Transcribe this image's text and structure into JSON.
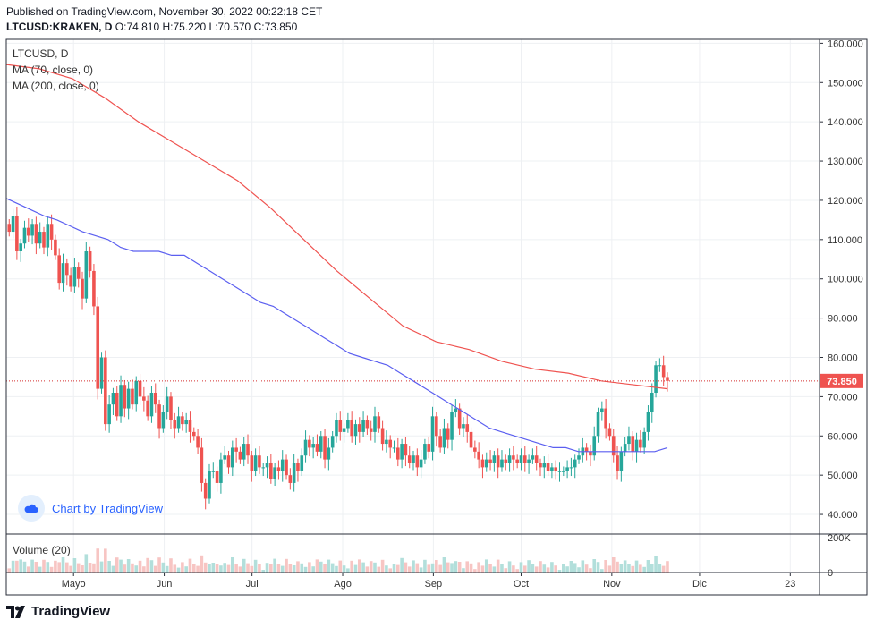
{
  "header": {
    "published": "Published on TradingView.com, November 30, 2022 00:22:18 CET",
    "symbol": "LTCUSD:KRAKEN, D",
    "ohlc": "O:74.810 H:75.220 L:70.570 C:73.850"
  },
  "legend": {
    "symbol": "LTCUSD, D",
    "ma70": "MA (70, close, 0)",
    "ma200": "MA (200, close, 0)",
    "volume": "Volume (20)"
  },
  "watermark": "Chart by TradingView",
  "brand": "TradingView",
  "last_price_label": "73.850",
  "colors": {
    "up": "#26a69a",
    "down": "#ef5350",
    "ma70": "#5b5ff0",
    "ma200": "#ef5350",
    "grid": "#eef0f3",
    "accent": "#2962ff"
  },
  "chart_data": {
    "type": "candlestick",
    "ylim": [
      35,
      161
    ],
    "yticks": [
      40,
      50,
      60,
      70,
      80,
      90,
      100,
      110,
      120,
      130,
      140,
      150,
      160
    ],
    "ytick_labels": [
      "40.000",
      "50.000",
      "60.000",
      "70.000",
      "80.000",
      "90.000",
      "100.000",
      "110.000",
      "120.000",
      "130.000",
      "140.000",
      "150.000",
      "160.000"
    ],
    "x_months": [
      {
        "label": "Mayo",
        "day": 0
      },
      {
        "label": "Jun",
        "day": 31
      },
      {
        "label": "Jul",
        "day": 61
      },
      {
        "label": "Ago",
        "day": 92
      },
      {
        "label": "Sep",
        "day": 123
      },
      {
        "label": "Oct",
        "day": 153
      },
      {
        "label": "Nov",
        "day": 184
      },
      {
        "label": "Dic",
        "day": 214
      },
      {
        "label": "23",
        "day": 245
      }
    ],
    "x_start_day": -23,
    "x_end_day": 255,
    "volume_axis_labels": [
      "200K",
      "0"
    ],
    "closes": [
      112,
      116,
      107,
      109,
      113,
      111,
      114,
      109,
      112,
      108,
      114,
      110,
      106,
      99,
      104,
      101,
      98,
      103,
      100,
      95,
      107,
      102,
      93,
      72,
      80,
      63,
      68,
      71,
      65,
      73,
      67,
      72,
      68,
      74,
      70,
      69,
      65,
      71,
      68,
      62,
      66,
      70,
      64,
      62,
      65,
      63,
      64,
      61,
      60,
      57,
      48,
      44,
      51,
      51,
      48,
      54,
      55,
      52,
      57,
      56,
      54,
      58,
      55,
      51,
      55,
      52,
      52,
      53,
      49,
      52,
      51,
      54,
      50,
      48,
      53,
      51,
      55,
      59,
      57,
      58,
      56,
      60,
      54,
      57,
      60,
      64,
      61,
      62,
      64,
      60,
      63,
      61,
      64,
      62,
      61,
      65,
      62,
      58,
      59,
      57,
      57,
      54,
      58,
      55,
      53,
      55,
      52,
      54,
      58,
      56,
      65,
      60,
      57,
      62,
      59,
      66,
      67,
      62,
      63,
      61,
      57,
      56,
      54,
      52,
      54,
      53,
      55,
      52,
      54,
      53,
      55,
      54,
      53,
      55,
      53,
      54,
      55,
      53,
      52,
      53,
      51,
      52,
      51,
      51,
      51,
      52,
      52,
      54,
      55,
      57,
      56,
      55,
      60,
      66,
      67,
      62,
      60,
      55,
      51,
      56,
      58,
      60,
      56,
      59,
      57,
      61,
      66,
      71,
      78,
      78,
      75,
      74
    ],
    "ma70": [
      120.5,
      119,
      117.5,
      116,
      115,
      113.5,
      112,
      111,
      110,
      108,
      107,
      107,
      107,
      106,
      106,
      104,
      102,
      100,
      98,
      96,
      94,
      93,
      91,
      89,
      87,
      85,
      83,
      81,
      80,
      79,
      78,
      76,
      74,
      72,
      70,
      68,
      66,
      64,
      62,
      61,
      60,
      59,
      58,
      57,
      57,
      56,
      56,
      56,
      56,
      56,
      56,
      56,
      57
    ],
    "ma200": [
      154.6,
      153.5,
      151,
      146,
      140,
      135,
      130,
      125,
      118,
      110,
      102,
      95,
      88,
      84,
      82,
      79,
      77,
      76,
      74,
      73,
      72
    ]
  }
}
